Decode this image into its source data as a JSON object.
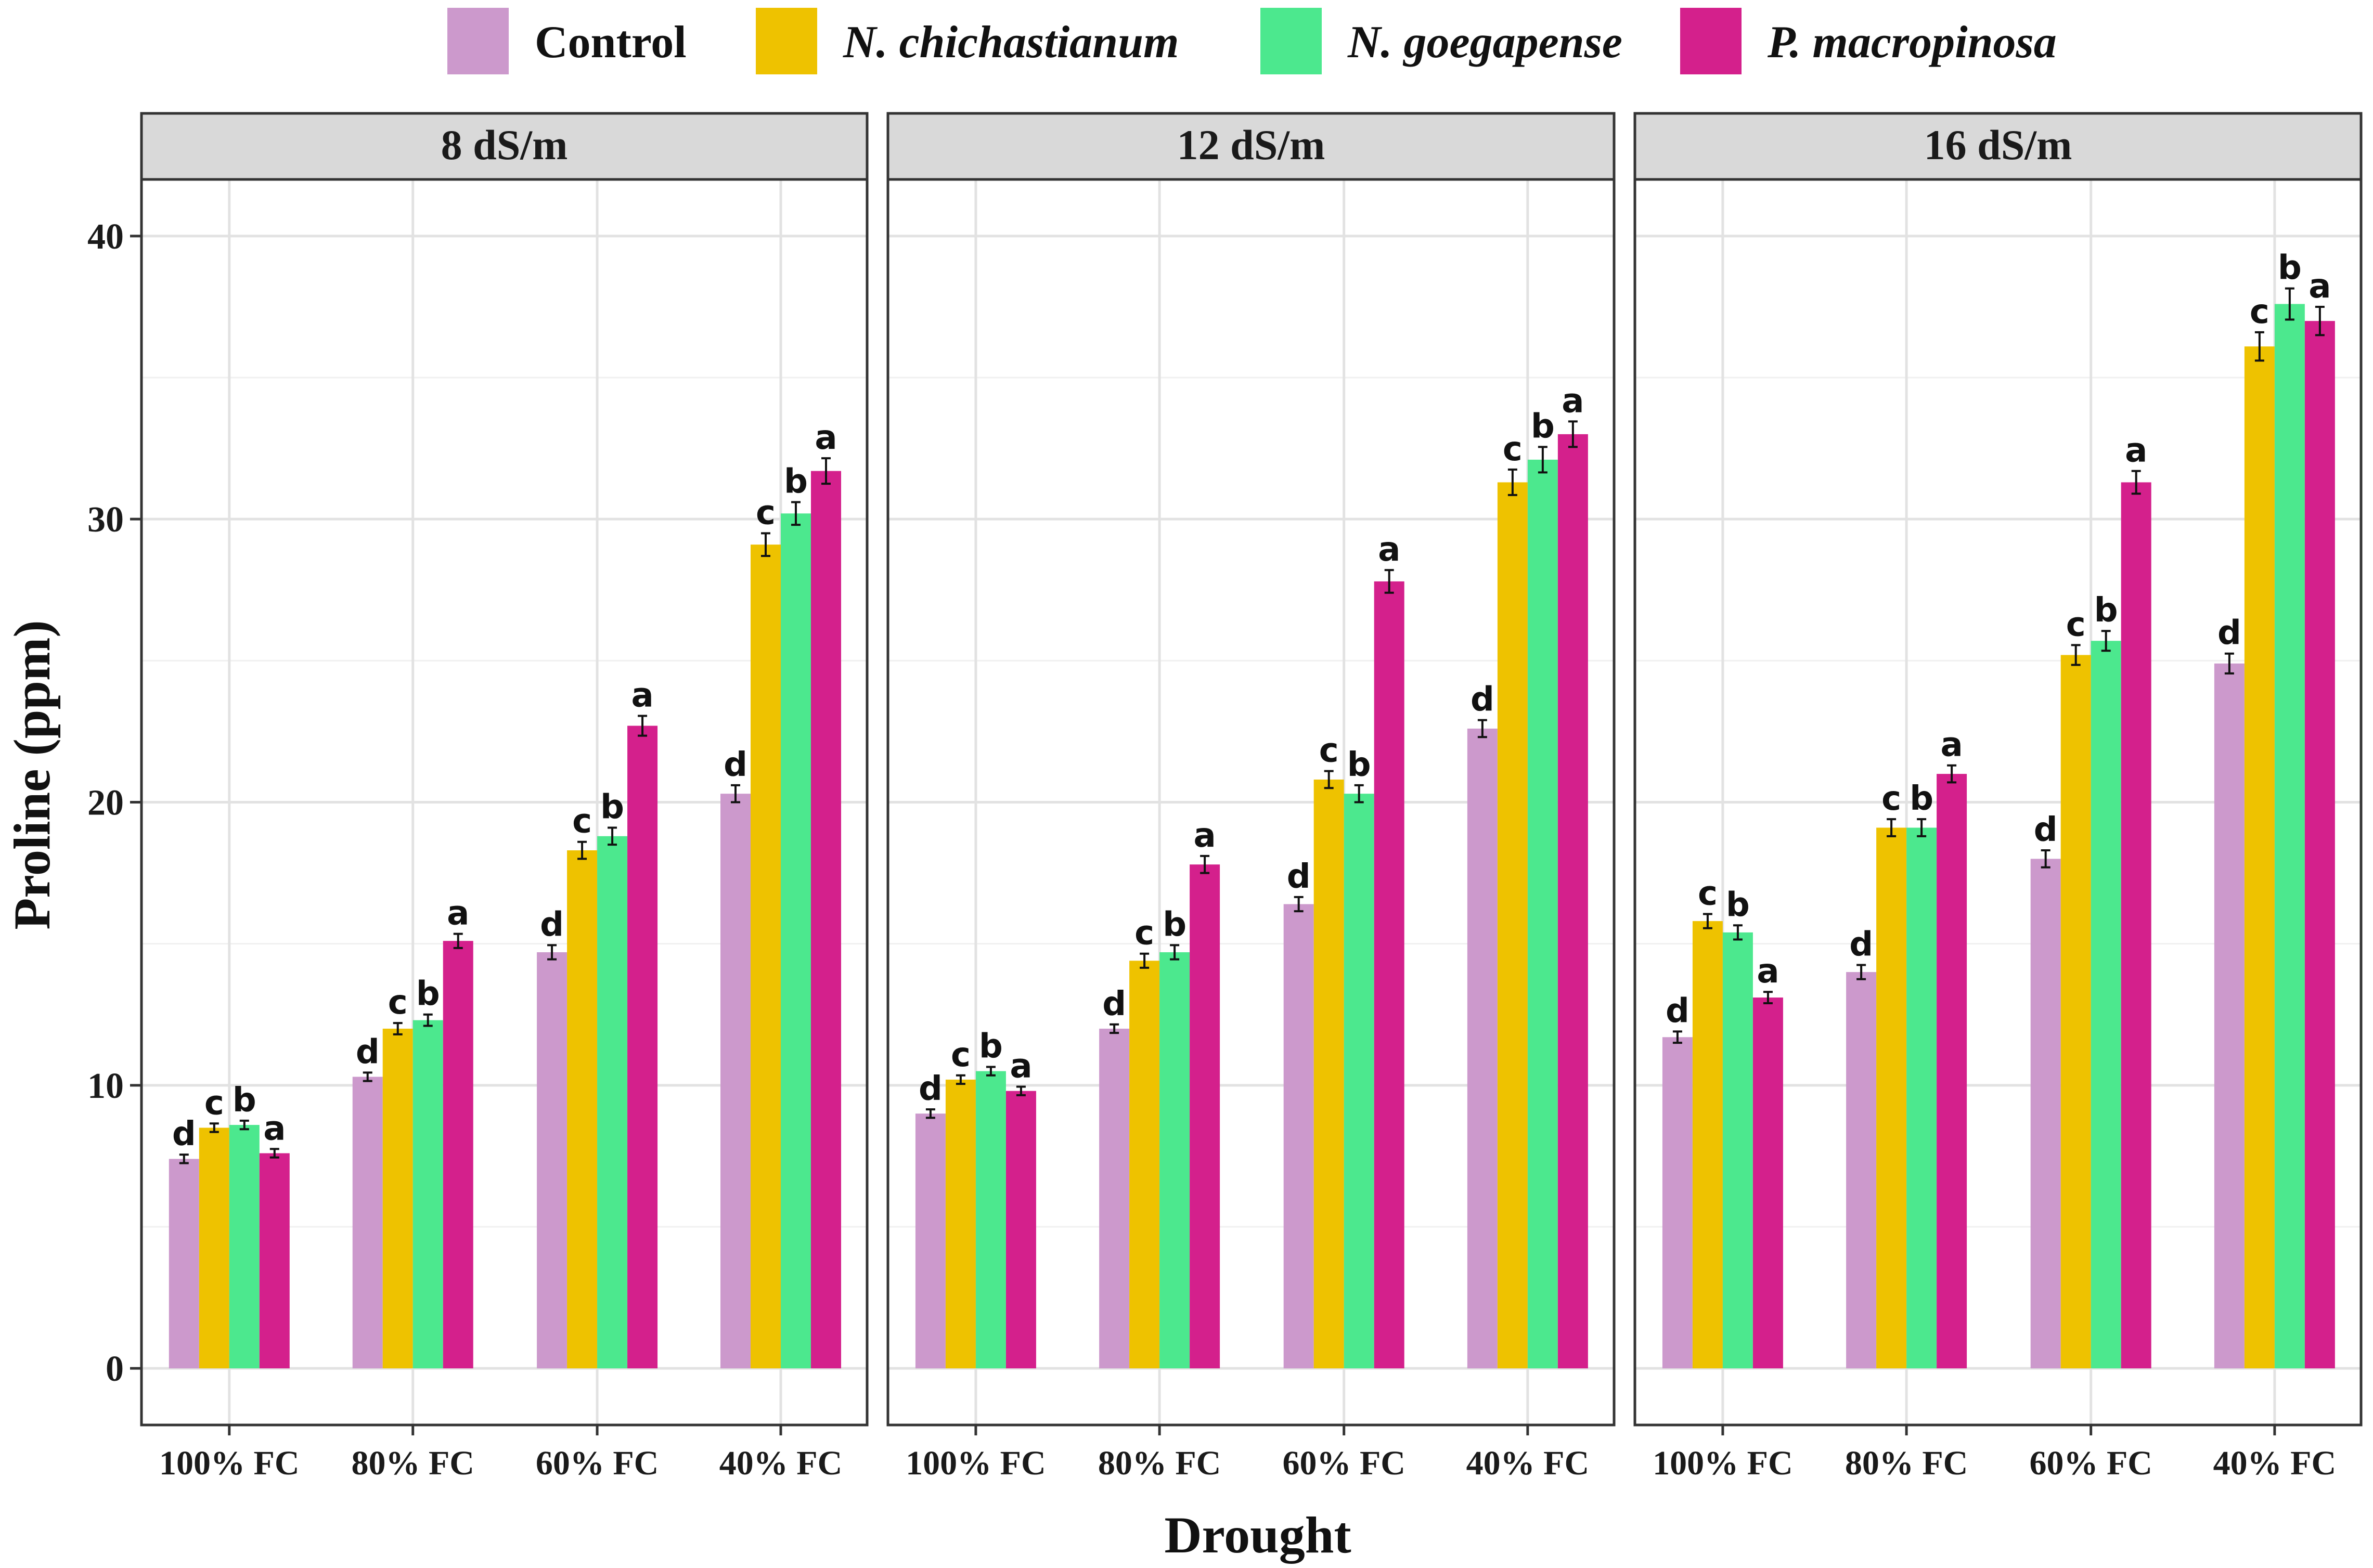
{
  "chart_data": {
    "type": "bar",
    "ylabel": "Proline (ppm)",
    "xlabel": "Drought",
    "ylim": [
      -2,
      42
    ],
    "yticks": [
      0,
      10,
      20,
      30,
      40
    ],
    "grid": true,
    "legend_position": "top",
    "categories": [
      "100% FC",
      "80% FC",
      "60% FC",
      "40% FC"
    ],
    "series_names": [
      "Control",
      "N. chichastianum",
      "N. goegapense",
      "P. macropinosa"
    ],
    "series_italic": [
      false,
      true,
      true,
      true
    ],
    "colors": [
      "#CC99CC",
      "#EEC200",
      "#4CE88E",
      "#D4208C"
    ],
    "panels": [
      {
        "title": "8 dS/m",
        "values": [
          [
            7.4,
            8.5,
            8.6,
            7.6
          ],
          [
            10.3,
            12.0,
            12.3,
            15.1
          ],
          [
            14.7,
            18.3,
            18.8,
            22.7
          ],
          [
            20.3,
            29.1,
            30.2,
            31.7
          ]
        ],
        "errors": [
          [
            0.15,
            0.15,
            0.15,
            0.15
          ],
          [
            0.15,
            0.2,
            0.2,
            0.25
          ],
          [
            0.25,
            0.3,
            0.3,
            0.35
          ],
          [
            0.3,
            0.4,
            0.4,
            0.45
          ]
        ],
        "letters": [
          [
            "d",
            "c",
            "b",
            "a"
          ],
          [
            "d",
            "c",
            "b",
            "a"
          ],
          [
            "d",
            "c",
            "b",
            "a"
          ],
          [
            "d",
            "c",
            "b",
            "a"
          ]
        ]
      },
      {
        "title": "12 dS/m",
        "values": [
          [
            9.0,
            10.2,
            10.5,
            9.8
          ],
          [
            12.0,
            14.4,
            14.7,
            17.8
          ],
          [
            16.4,
            20.8,
            20.3,
            27.8
          ],
          [
            22.6,
            31.3,
            32.1,
            33.0
          ]
        ],
        "errors": [
          [
            0.15,
            0.15,
            0.15,
            0.15
          ],
          [
            0.15,
            0.25,
            0.25,
            0.3
          ],
          [
            0.25,
            0.3,
            0.3,
            0.4
          ],
          [
            0.3,
            0.45,
            0.45,
            0.45
          ]
        ],
        "letters": [
          [
            "d",
            "c",
            "b",
            "a"
          ],
          [
            "d",
            "c",
            "b",
            "a"
          ],
          [
            "d",
            "c",
            "b",
            "a"
          ],
          [
            "d",
            "c",
            "b",
            "a"
          ]
        ]
      },
      {
        "title": "16 dS/m",
        "values": [
          [
            11.7,
            15.8,
            15.4,
            13.1
          ],
          [
            14.0,
            19.1,
            19.1,
            21.0
          ],
          [
            18.0,
            25.2,
            25.7,
            31.3
          ],
          [
            24.9,
            36.1,
            37.6,
            37.0
          ]
        ],
        "errors": [
          [
            0.2,
            0.25,
            0.25,
            0.2
          ],
          [
            0.25,
            0.3,
            0.3,
            0.3
          ],
          [
            0.3,
            0.35,
            0.35,
            0.4
          ],
          [
            0.35,
            0.5,
            0.55,
            0.5
          ]
        ],
        "letters": [
          [
            "d",
            "c",
            "b",
            "a"
          ],
          [
            "d",
            "c",
            "b",
            "a"
          ],
          [
            "d",
            "c",
            "b",
            "a"
          ],
          [
            "d",
            "c",
            "b",
            "a"
          ]
        ]
      }
    ]
  }
}
